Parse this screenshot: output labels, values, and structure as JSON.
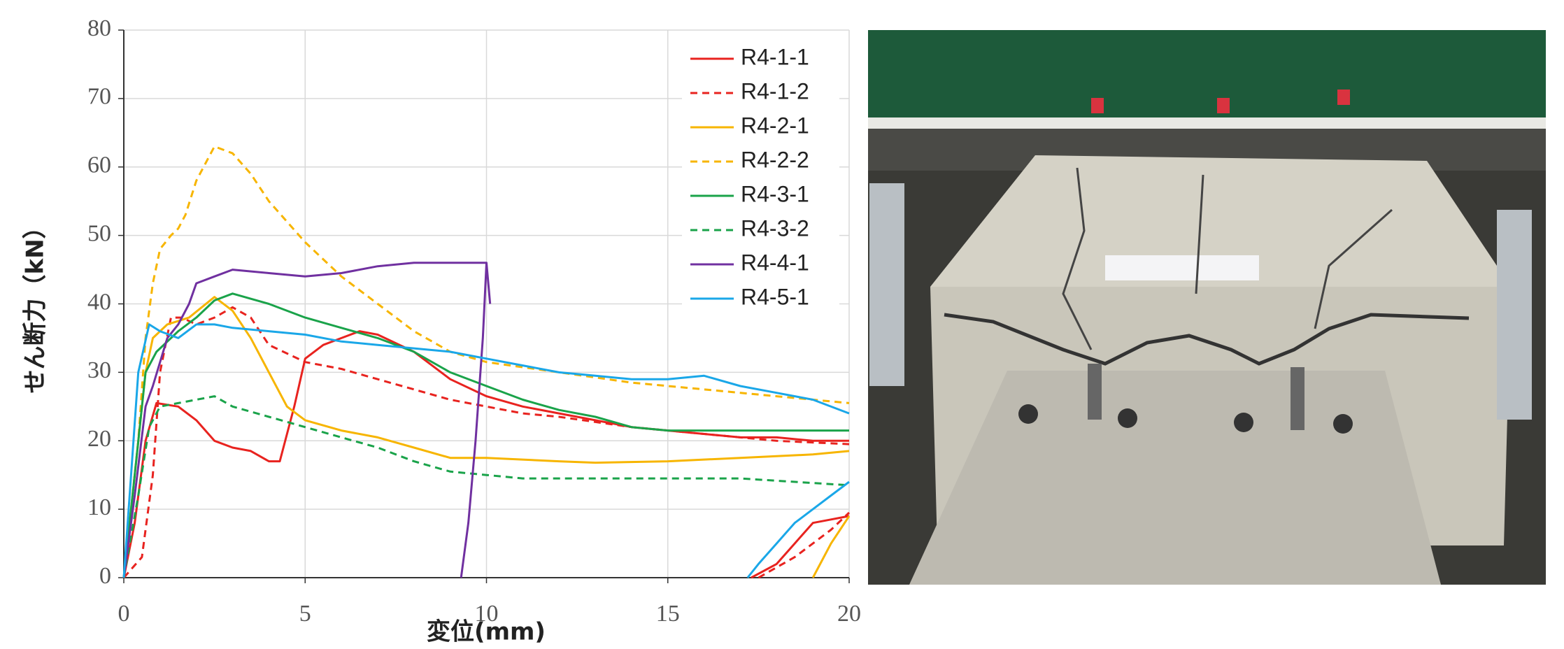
{
  "chart_data": {
    "type": "line",
    "x_label": "変位(mm)",
    "y_label": "せん断力（kN）",
    "xlim": [
      0,
      20
    ],
    "xticks": [
      0,
      5,
      10,
      15,
      20
    ],
    "ylim": [
      0,
      80
    ],
    "yticks": [
      0,
      10,
      20,
      30,
      40,
      50,
      60,
      70,
      80
    ],
    "grid": true,
    "legend": "upper right",
    "series": [
      {
        "name": "R4-1-1",
        "color": "#e8231f",
        "dashed": false,
        "x": [
          0,
          0.3,
          0.6,
          0.9,
          1.5,
          2,
          2.5,
          3,
          3.5,
          4,
          4.3,
          4.7,
          5,
          5.5,
          6,
          6.5,
          7,
          8,
          9,
          10,
          11,
          12,
          13,
          14,
          15,
          16,
          17,
          18,
          19,
          20,
          null,
          17.3,
          18,
          18.5,
          19,
          19.5,
          20
        ],
        "values": [
          0,
          8,
          20,
          25.5,
          25,
          23,
          20,
          19,
          18.5,
          17,
          17,
          25,
          32,
          34,
          35,
          36,
          35.5,
          33,
          29,
          26.5,
          25,
          24,
          23,
          22,
          21.5,
          21,
          20.5,
          20.5,
          20,
          20,
          null,
          0,
          2,
          5,
          8,
          8.5,
          9
        ]
      },
      {
        "name": "R4-1-2",
        "color": "#e8231f",
        "dashed": true,
        "x": [
          0,
          0.5,
          0.8,
          1,
          1.3,
          1.6,
          2,
          2.5,
          3,
          3.5,
          4,
          5,
          6,
          7,
          8,
          9,
          10,
          11,
          12,
          14,
          16,
          18,
          20,
          null,
          17.5,
          18.5,
          19.5,
          20
        ],
        "values": [
          0,
          3,
          15,
          30,
          38,
          38,
          37,
          38,
          39.5,
          38,
          34,
          31.5,
          30.5,
          29,
          27.5,
          26,
          25,
          24,
          23.5,
          22,
          21,
          20,
          19.5,
          null,
          0,
          3,
          7,
          9.5
        ]
      },
      {
        "name": "R4-2-1",
        "color": "#f7b500",
        "dashed": false,
        "x": [
          0,
          0.3,
          0.6,
          0.8,
          1.2,
          1.8,
          2.5,
          3,
          3.5,
          4,
          4.5,
          5,
          6,
          7,
          8,
          9,
          10,
          12,
          13,
          15,
          17,
          19,
          20,
          null,
          19,
          19.5,
          20
        ],
        "values": [
          0,
          15,
          30,
          35,
          37,
          38,
          41,
          39,
          35,
          30,
          25,
          23,
          21.5,
          20.5,
          19,
          17.5,
          17.5,
          17,
          16.8,
          17,
          17.5,
          18,
          18.5,
          null,
          0,
          5,
          9
        ]
      },
      {
        "name": "R4-2-2",
        "color": "#f7b500",
        "dashed": true,
        "x": [
          0,
          0.4,
          0.6,
          0.8,
          1,
          1.3,
          1.5,
          1.7,
          2,
          2.5,
          3,
          3.5,
          4,
          5,
          6,
          7,
          8,
          9,
          10,
          12,
          14,
          16,
          18,
          20
        ],
        "values": [
          0,
          20,
          35,
          43,
          48,
          50,
          51,
          53,
          58,
          63,
          62,
          59,
          55,
          49,
          44,
          40,
          36,
          33,
          31.5,
          30,
          28.5,
          27.5,
          26.5,
          25.5
        ]
      },
      {
        "name": "R4-3-1",
        "color": "#1aa34a",
        "dashed": false,
        "x": [
          0,
          0.3,
          0.6,
          0.9,
          1.5,
          2,
          2.5,
          3,
          4,
          5,
          6,
          7,
          8,
          9,
          10,
          11,
          12,
          13,
          14,
          15,
          17,
          20
        ],
        "values": [
          0,
          15,
          30,
          33,
          36,
          38,
          40.5,
          41.5,
          40,
          38,
          36.5,
          35,
          33,
          30,
          28,
          26,
          24.5,
          23.5,
          22,
          21.5,
          21.5,
          21.5
        ]
      },
      {
        "name": "R4-3-2",
        "color": "#1aa34a",
        "dashed": true,
        "x": [
          0,
          0.4,
          0.7,
          1,
          1.5,
          2,
          2.5,
          3,
          4,
          5,
          6,
          7,
          8,
          9,
          10,
          11,
          14,
          17,
          20
        ],
        "values": [
          0,
          12,
          22,
          25,
          25.5,
          26,
          26.5,
          25,
          23.5,
          22,
          20.5,
          19,
          17,
          15.5,
          15,
          14.5,
          14.5,
          14.5,
          13.5
        ]
      },
      {
        "name": "R4-4-1",
        "color": "#7030a0",
        "dashed": false,
        "x": [
          0,
          0.3,
          0.6,
          0.8,
          1.2,
          1.5,
          1.8,
          2,
          2.5,
          3,
          4,
          5,
          6,
          7,
          8,
          9,
          10,
          10.1,
          null,
          9.3,
          9.5,
          9.7,
          9.9,
          10
        ],
        "values": [
          0,
          12,
          25,
          28,
          35,
          37,
          40,
          43,
          44,
          45,
          44.5,
          44,
          44.5,
          45.5,
          46,
          46,
          46,
          40,
          null,
          0,
          8,
          20,
          35,
          46
        ]
      },
      {
        "name": "R4-5-1",
        "color": "#1aa7e8",
        "dashed": false,
        "x": [
          0,
          0.2,
          0.4,
          0.7,
          1,
          1.5,
          2,
          2.5,
          3,
          4,
          5,
          6,
          7,
          8,
          9,
          10,
          11,
          12,
          13,
          14,
          15,
          16,
          17,
          18,
          19,
          20,
          null,
          17.2,
          17.5,
          18,
          18.5,
          19,
          19.5,
          20
        ],
        "values": [
          0,
          15,
          30,
          37,
          36,
          35,
          37,
          37,
          36.5,
          36,
          35.5,
          34.5,
          34,
          33.5,
          33,
          32,
          31,
          30,
          29.5,
          29,
          29,
          29.5,
          28,
          27,
          26,
          24,
          null,
          0,
          2,
          5,
          8,
          10,
          12,
          14
        ]
      }
    ]
  }
}
